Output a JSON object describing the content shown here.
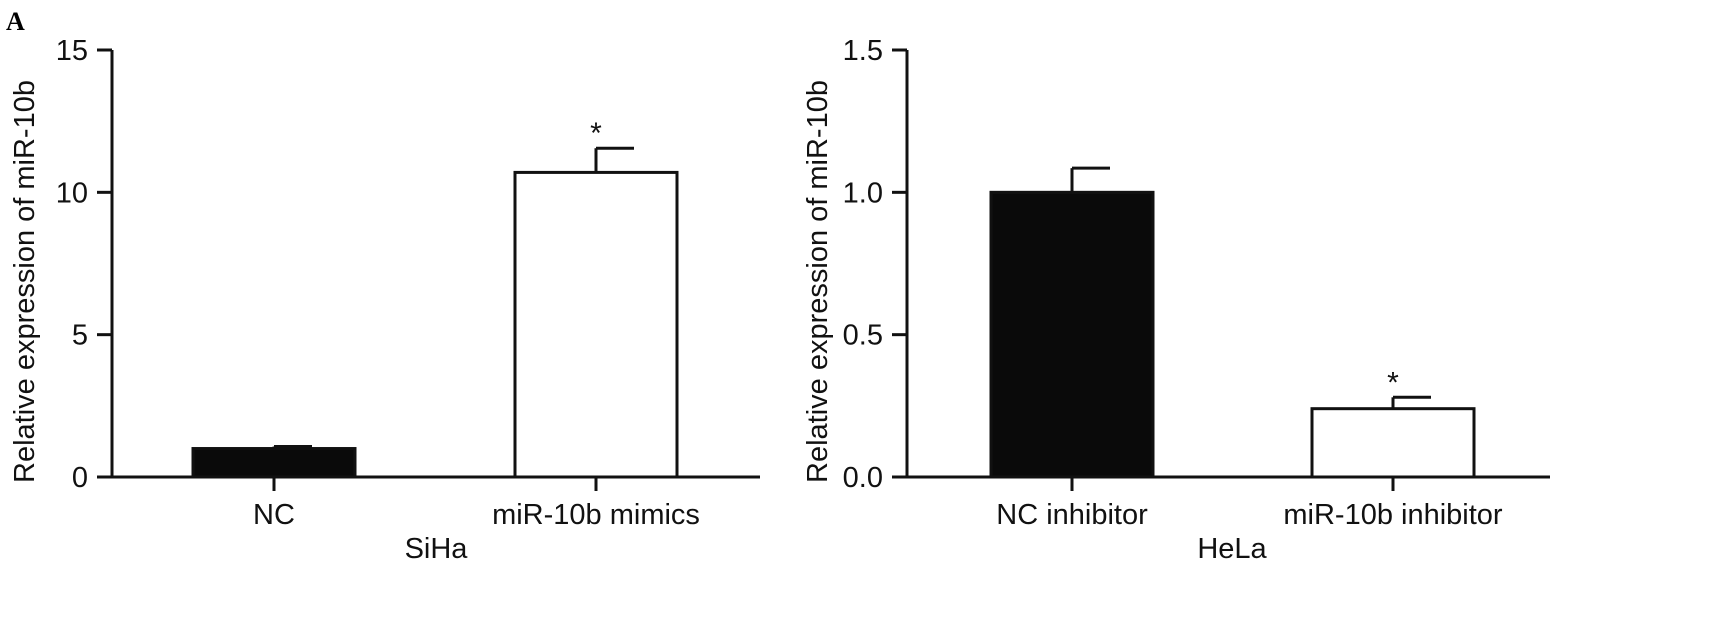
{
  "panel_label": "A",
  "chart_data": [
    {
      "type": "bar",
      "categories": [
        "NC",
        "miR-10b mimics"
      ],
      "values": [
        1.0,
        10.7
      ],
      "errors": [
        0.07,
        0.85
      ],
      "bar_colors": [
        "#0a0a0a",
        "#ffffff"
      ],
      "significance": [
        "",
        "*"
      ],
      "title": "",
      "xlabel": "SiHa",
      "ylabel": "Relative expression of miR-10b",
      "ylim": [
        0,
        15
      ],
      "yticks": [
        0,
        5,
        10,
        15
      ],
      "ytick_labels": [
        "0",
        "5",
        "10",
        "15"
      ],
      "grid": false
    },
    {
      "type": "bar",
      "categories": [
        "NC inhibitor",
        "miR-10b inhibitor"
      ],
      "values": [
        1.0,
        0.24
      ],
      "errors": [
        0.085,
        0.04
      ],
      "bar_colors": [
        "#0a0a0a",
        "#ffffff"
      ],
      "significance": [
        "",
        "*"
      ],
      "title": "",
      "xlabel": "HeLa",
      "ylabel": "Relative expression of miR-10b",
      "ylim": [
        0,
        1.5
      ],
      "yticks": [
        0,
        0.5,
        1.0,
        1.5
      ],
      "ytick_labels": [
        "0.0",
        "0.5",
        "1.0",
        "1.5"
      ],
      "grid": false
    }
  ]
}
